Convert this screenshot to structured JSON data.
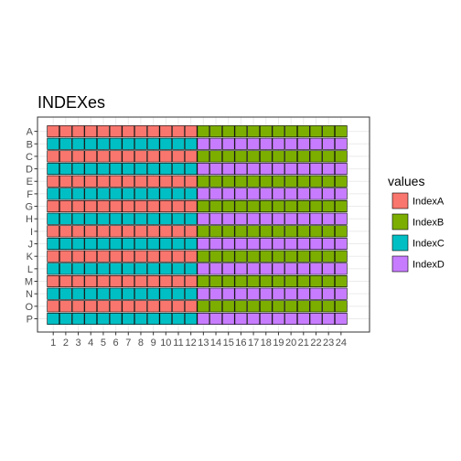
{
  "chart_data": {
    "type": "heatmap",
    "title": "INDEXes",
    "xlabel": "",
    "ylabel": "",
    "x_categories": [
      "1",
      "2",
      "3",
      "4",
      "5",
      "6",
      "7",
      "8",
      "9",
      "10",
      "11",
      "12",
      "13",
      "14",
      "15",
      "16",
      "17",
      "18",
      "19",
      "20",
      "21",
      "22",
      "23",
      "24"
    ],
    "y_categories": [
      "A",
      "B",
      "C",
      "D",
      "E",
      "F",
      "G",
      "H",
      "I",
      "J",
      "K",
      "L",
      "M",
      "N",
      "O",
      "P"
    ],
    "values": [
      [
        "IndexA",
        "IndexA",
        "IndexA",
        "IndexA",
        "IndexA",
        "IndexA",
        "IndexA",
        "IndexA",
        "IndexA",
        "IndexA",
        "IndexA",
        "IndexA",
        "IndexB",
        "IndexB",
        "IndexB",
        "IndexB",
        "IndexB",
        "IndexB",
        "IndexB",
        "IndexB",
        "IndexB",
        "IndexB",
        "IndexB",
        "IndexB"
      ],
      [
        "IndexC",
        "IndexC",
        "IndexC",
        "IndexC",
        "IndexC",
        "IndexC",
        "IndexC",
        "IndexC",
        "IndexC",
        "IndexC",
        "IndexC",
        "IndexC",
        "IndexD",
        "IndexD",
        "IndexD",
        "IndexD",
        "IndexD",
        "IndexD",
        "IndexD",
        "IndexD",
        "IndexD",
        "IndexD",
        "IndexD",
        "IndexD"
      ],
      [
        "IndexA",
        "IndexA",
        "IndexA",
        "IndexA",
        "IndexA",
        "IndexA",
        "IndexA",
        "IndexA",
        "IndexA",
        "IndexA",
        "IndexA",
        "IndexA",
        "IndexB",
        "IndexB",
        "IndexB",
        "IndexB",
        "IndexB",
        "IndexB",
        "IndexB",
        "IndexB",
        "IndexB",
        "IndexB",
        "IndexB",
        "IndexB"
      ],
      [
        "IndexC",
        "IndexC",
        "IndexC",
        "IndexC",
        "IndexC",
        "IndexC",
        "IndexC",
        "IndexC",
        "IndexC",
        "IndexC",
        "IndexC",
        "IndexC",
        "IndexD",
        "IndexD",
        "IndexD",
        "IndexD",
        "IndexD",
        "IndexD",
        "IndexD",
        "IndexD",
        "IndexD",
        "IndexD",
        "IndexD",
        "IndexD"
      ],
      [
        "IndexA",
        "IndexA",
        "IndexA",
        "IndexA",
        "IndexA",
        "IndexA",
        "IndexA",
        "IndexA",
        "IndexA",
        "IndexA",
        "IndexA",
        "IndexA",
        "IndexB",
        "IndexB",
        "IndexB",
        "IndexB",
        "IndexB",
        "IndexB",
        "IndexB",
        "IndexB",
        "IndexB",
        "IndexB",
        "IndexB",
        "IndexB"
      ],
      [
        "IndexC",
        "IndexC",
        "IndexC",
        "IndexC",
        "IndexC",
        "IndexC",
        "IndexC",
        "IndexC",
        "IndexC",
        "IndexC",
        "IndexC",
        "IndexC",
        "IndexD",
        "IndexD",
        "IndexD",
        "IndexD",
        "IndexD",
        "IndexD",
        "IndexD",
        "IndexD",
        "IndexD",
        "IndexD",
        "IndexD",
        "IndexD"
      ],
      [
        "IndexA",
        "IndexA",
        "IndexA",
        "IndexA",
        "IndexA",
        "IndexA",
        "IndexA",
        "IndexA",
        "IndexA",
        "IndexA",
        "IndexA",
        "IndexA",
        "IndexB",
        "IndexB",
        "IndexB",
        "IndexB",
        "IndexB",
        "IndexB",
        "IndexB",
        "IndexB",
        "IndexB",
        "IndexB",
        "IndexB",
        "IndexB"
      ],
      [
        "IndexC",
        "IndexC",
        "IndexC",
        "IndexC",
        "IndexC",
        "IndexC",
        "IndexC",
        "IndexC",
        "IndexC",
        "IndexC",
        "IndexC",
        "IndexC",
        "IndexD",
        "IndexD",
        "IndexD",
        "IndexD",
        "IndexD",
        "IndexD",
        "IndexD",
        "IndexD",
        "IndexD",
        "IndexD",
        "IndexD",
        "IndexD"
      ],
      [
        "IndexA",
        "IndexA",
        "IndexA",
        "IndexA",
        "IndexA",
        "IndexA",
        "IndexA",
        "IndexA",
        "IndexA",
        "IndexA",
        "IndexA",
        "IndexA",
        "IndexB",
        "IndexB",
        "IndexB",
        "IndexB",
        "IndexB",
        "IndexB",
        "IndexB",
        "IndexB",
        "IndexB",
        "IndexB",
        "IndexB",
        "IndexB"
      ],
      [
        "IndexC",
        "IndexC",
        "IndexC",
        "IndexC",
        "IndexC",
        "IndexC",
        "IndexC",
        "IndexC",
        "IndexC",
        "IndexC",
        "IndexC",
        "IndexC",
        "IndexD",
        "IndexD",
        "IndexD",
        "IndexD",
        "IndexD",
        "IndexD",
        "IndexD",
        "IndexD",
        "IndexD",
        "IndexD",
        "IndexD",
        "IndexD"
      ],
      [
        "IndexA",
        "IndexA",
        "IndexA",
        "IndexA",
        "IndexA",
        "IndexA",
        "IndexA",
        "IndexA",
        "IndexA",
        "IndexA",
        "IndexA",
        "IndexA",
        "IndexB",
        "IndexB",
        "IndexB",
        "IndexB",
        "IndexB",
        "IndexB",
        "IndexB",
        "IndexB",
        "IndexB",
        "IndexB",
        "IndexB",
        "IndexB"
      ],
      [
        "IndexC",
        "IndexC",
        "IndexC",
        "IndexC",
        "IndexC",
        "IndexC",
        "IndexC",
        "IndexC",
        "IndexC",
        "IndexC",
        "IndexC",
        "IndexC",
        "IndexD",
        "IndexD",
        "IndexD",
        "IndexD",
        "IndexD",
        "IndexD",
        "IndexD",
        "IndexD",
        "IndexD",
        "IndexD",
        "IndexD",
        "IndexD"
      ],
      [
        "IndexA",
        "IndexA",
        "IndexA",
        "IndexA",
        "IndexA",
        "IndexA",
        "IndexA",
        "IndexA",
        "IndexA",
        "IndexA",
        "IndexA",
        "IndexA",
        "IndexB",
        "IndexB",
        "IndexB",
        "IndexB",
        "IndexB",
        "IndexB",
        "IndexB",
        "IndexB",
        "IndexB",
        "IndexB",
        "IndexB",
        "IndexB"
      ],
      [
        "IndexC",
        "IndexC",
        "IndexC",
        "IndexC",
        "IndexC",
        "IndexC",
        "IndexC",
        "IndexC",
        "IndexC",
        "IndexC",
        "IndexC",
        "IndexC",
        "IndexD",
        "IndexD",
        "IndexD",
        "IndexD",
        "IndexD",
        "IndexD",
        "IndexD",
        "IndexD",
        "IndexD",
        "IndexD",
        "IndexD",
        "IndexD"
      ],
      [
        "IndexA",
        "IndexA",
        "IndexA",
        "IndexA",
        "IndexA",
        "IndexA",
        "IndexA",
        "IndexA",
        "IndexA",
        "IndexA",
        "IndexA",
        "IndexA",
        "IndexB",
        "IndexB",
        "IndexB",
        "IndexB",
        "IndexB",
        "IndexB",
        "IndexB",
        "IndexB",
        "IndexB",
        "IndexB",
        "IndexB",
        "IndexB"
      ],
      [
        "IndexC",
        "IndexC",
        "IndexC",
        "IndexC",
        "IndexC",
        "IndexC",
        "IndexC",
        "IndexC",
        "IndexC",
        "IndexC",
        "IndexC",
        "IndexC",
        "IndexD",
        "IndexD",
        "IndexD",
        "IndexD",
        "IndexD",
        "IndexD",
        "IndexD",
        "IndexD",
        "IndexD",
        "IndexD",
        "IndexD",
        "IndexD"
      ]
    ],
    "legend": {
      "title": "values",
      "placement": "right",
      "entries": [
        {
          "name": "IndexA",
          "color": "#F8766D"
        },
        {
          "name": "IndexB",
          "color": "#7CAE00"
        },
        {
          "name": "IndexC",
          "color": "#00BFC4"
        },
        {
          "name": "IndexD",
          "color": "#C77CFF"
        }
      ]
    },
    "grid": true,
    "tile_border_color": "#000000",
    "panel_border_color": "#333333",
    "grid_color": "#ebebeb"
  }
}
